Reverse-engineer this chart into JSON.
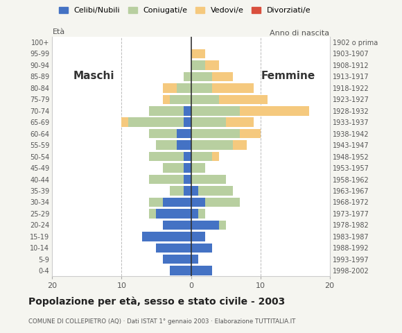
{
  "age_groups": [
    "0-4",
    "5-9",
    "10-14",
    "15-19",
    "20-24",
    "25-29",
    "30-34",
    "35-39",
    "40-44",
    "45-49",
    "50-54",
    "55-59",
    "60-64",
    "65-69",
    "70-74",
    "75-79",
    "80-84",
    "85-89",
    "90-94",
    "95-99",
    "100+"
  ],
  "birth_years": [
    "1998-2002",
    "1993-1997",
    "1988-1992",
    "1983-1987",
    "1978-1982",
    "1973-1977",
    "1968-1972",
    "1963-1967",
    "1958-1962",
    "1953-1957",
    "1948-1952",
    "1943-1947",
    "1938-1942",
    "1933-1937",
    "1928-1932",
    "1923-1927",
    "1918-1922",
    "1913-1917",
    "1908-1912",
    "1903-1907",
    "1902 o prima"
  ],
  "males": {
    "celibi": [
      3,
      4,
      5,
      7,
      4,
      5,
      4,
      1,
      1,
      1,
      1,
      2,
      2,
      1,
      1,
      0,
      0,
      0,
      0,
      0,
      0
    ],
    "coniugati": [
      0,
      0,
      0,
      0,
      0,
      1,
      2,
      2,
      5,
      3,
      5,
      3,
      4,
      8,
      5,
      3,
      2,
      1,
      0,
      0,
      0
    ],
    "vedovi": [
      0,
      0,
      0,
      0,
      0,
      0,
      0,
      0,
      0,
      0,
      0,
      0,
      0,
      1,
      0,
      1,
      2,
      0,
      0,
      0,
      0
    ],
    "divorziati": [
      0,
      0,
      0,
      0,
      0,
      0,
      0,
      0,
      0,
      0,
      0,
      0,
      0,
      0,
      0,
      0,
      0,
      0,
      0,
      0,
      0
    ]
  },
  "females": {
    "nubili": [
      3,
      1,
      3,
      2,
      4,
      1,
      2,
      1,
      0,
      0,
      0,
      0,
      0,
      0,
      0,
      0,
      0,
      0,
      0,
      0,
      0
    ],
    "coniugate": [
      0,
      0,
      0,
      0,
      1,
      1,
      5,
      5,
      5,
      2,
      3,
      6,
      7,
      5,
      7,
      4,
      3,
      3,
      2,
      0,
      0
    ],
    "vedove": [
      0,
      0,
      0,
      0,
      0,
      0,
      0,
      0,
      0,
      0,
      1,
      2,
      3,
      4,
      10,
      7,
      6,
      3,
      2,
      2,
      0
    ],
    "divorziate": [
      0,
      0,
      0,
      0,
      0,
      0,
      0,
      0,
      0,
      0,
      0,
      0,
      0,
      0,
      0,
      0,
      0,
      0,
      0,
      0,
      0
    ]
  },
  "colors": {
    "celibi": "#4472c4",
    "coniugati": "#b8cfa0",
    "vedovi": "#f5c97e",
    "divorziati": "#d94f3d"
  },
  "xlim": 20,
  "title": "Popolazione per età, sesso e stato civile - 2003",
  "subtitle": "COMUNE DI COLLEPIETRO (AQ) · Dati ISTAT 1° gennaio 2003 · Elaborazione TUTTITALIA.IT",
  "legend_labels": [
    "Celibi/Nubili",
    "Coniugati/e",
    "Vedovi/e",
    "Divorziati/e"
  ],
  "background_color": "#f5f5f0",
  "plot_background": "#ffffff"
}
